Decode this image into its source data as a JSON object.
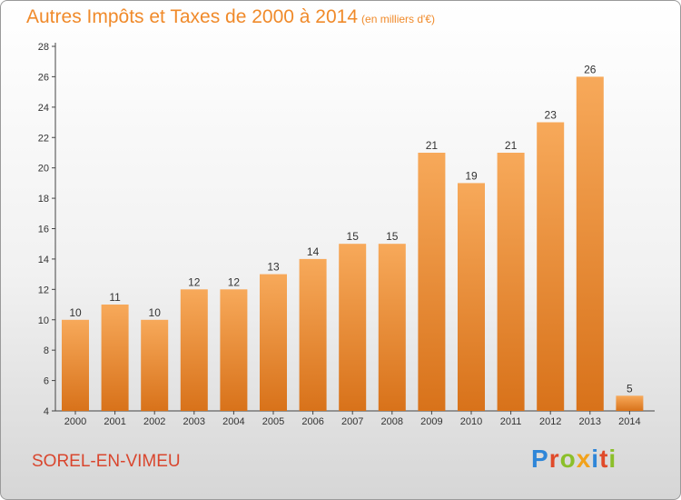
{
  "header": {
    "title": "Autres Impôts et Taxes de 2000 à 2014",
    "subtitle": "(en milliers d'€)"
  },
  "footer": {
    "place": "SOREL-EN-VIMEU",
    "brand_letters": [
      "P",
      "r",
      "o",
      "x",
      "i",
      "t",
      "i"
    ]
  },
  "colors": {
    "bar_top": "#f7a95a",
    "bar_bottom": "#d8721a",
    "title": "#f08a2a",
    "place": "#d9462e"
  },
  "chart_data": {
    "type": "bar",
    "title": "Autres Impôts et Taxes de 2000 à 2014",
    "subtitle": "(en milliers d'€)",
    "categories": [
      "2000",
      "2001",
      "2002",
      "2003",
      "2004",
      "2005",
      "2006",
      "2007",
      "2008",
      "2009",
      "2010",
      "2011",
      "2012",
      "2013",
      "2014"
    ],
    "values": [
      10,
      11,
      10,
      12,
      12,
      13,
      14,
      15,
      15,
      21,
      19,
      21,
      23,
      26,
      5
    ],
    "ylim": [
      4,
      28
    ],
    "yticks": [
      4,
      6,
      8,
      10,
      12,
      14,
      16,
      18,
      20,
      22,
      24,
      26,
      28
    ],
    "grid": false,
    "legend": "none"
  }
}
